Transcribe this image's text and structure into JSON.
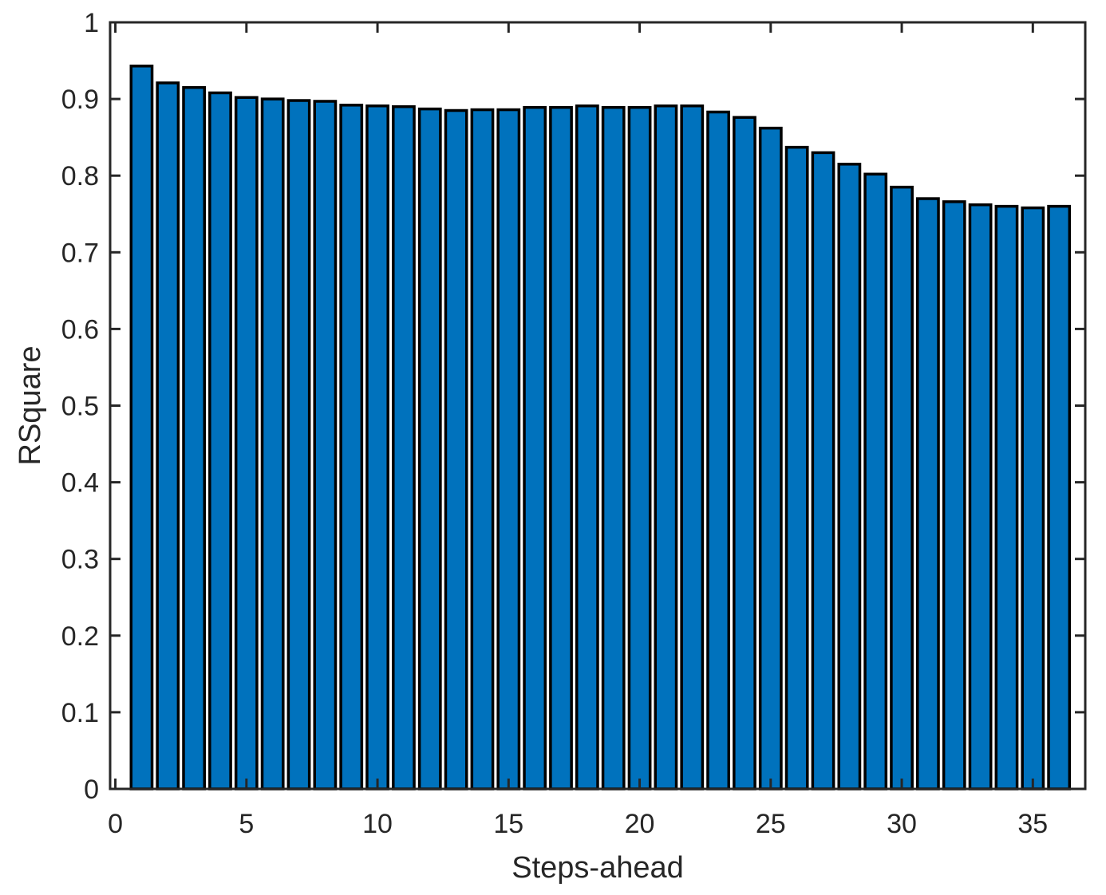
{
  "chart_data": {
    "type": "bar",
    "title": "",
    "xlabel": "Steps-ahead",
    "ylabel": "RSquare",
    "x": [
      1,
      2,
      3,
      4,
      5,
      6,
      7,
      8,
      9,
      10,
      11,
      12,
      13,
      14,
      15,
      16,
      17,
      18,
      19,
      20,
      21,
      22,
      23,
      24,
      25,
      26,
      27,
      28,
      29,
      30,
      31,
      32,
      33,
      34,
      35,
      36
    ],
    "values": [
      0.943,
      0.921,
      0.915,
      0.908,
      0.902,
      0.9,
      0.898,
      0.897,
      0.892,
      0.891,
      0.89,
      0.887,
      0.885,
      0.886,
      0.886,
      0.889,
      0.889,
      0.891,
      0.889,
      0.889,
      0.891,
      0.891,
      0.883,
      0.876,
      0.862,
      0.837,
      0.83,
      0.815,
      0.802,
      0.785,
      0.77,
      0.766,
      0.762,
      0.76,
      0.758,
      0.76
    ],
    "bar_width": 0.8,
    "xlim": [
      -0.2,
      37.0
    ],
    "ylim": [
      0,
      1
    ],
    "xticks": [
      0,
      5,
      10,
      15,
      20,
      25,
      30,
      35
    ],
    "xtick_labels": [
      "0",
      "5",
      "10",
      "15",
      "20",
      "25",
      "30",
      "35"
    ],
    "yticks": [
      0,
      0.1,
      0.2,
      0.3,
      0.4,
      0.5,
      0.6,
      0.7,
      0.8,
      0.9,
      1
    ],
    "ytick_labels": [
      "0",
      "0.1",
      "0.2",
      "0.3",
      "0.4",
      "0.5",
      "0.6",
      "0.7",
      "0.8",
      "0.9",
      "1"
    ],
    "grid": false,
    "legend": null,
    "box": true,
    "tick_direction": "in",
    "colors": {
      "bar_fill": "#0072BD",
      "bar_edge": "#000000",
      "axis": "#262626",
      "background": "#FFFFFF"
    }
  }
}
